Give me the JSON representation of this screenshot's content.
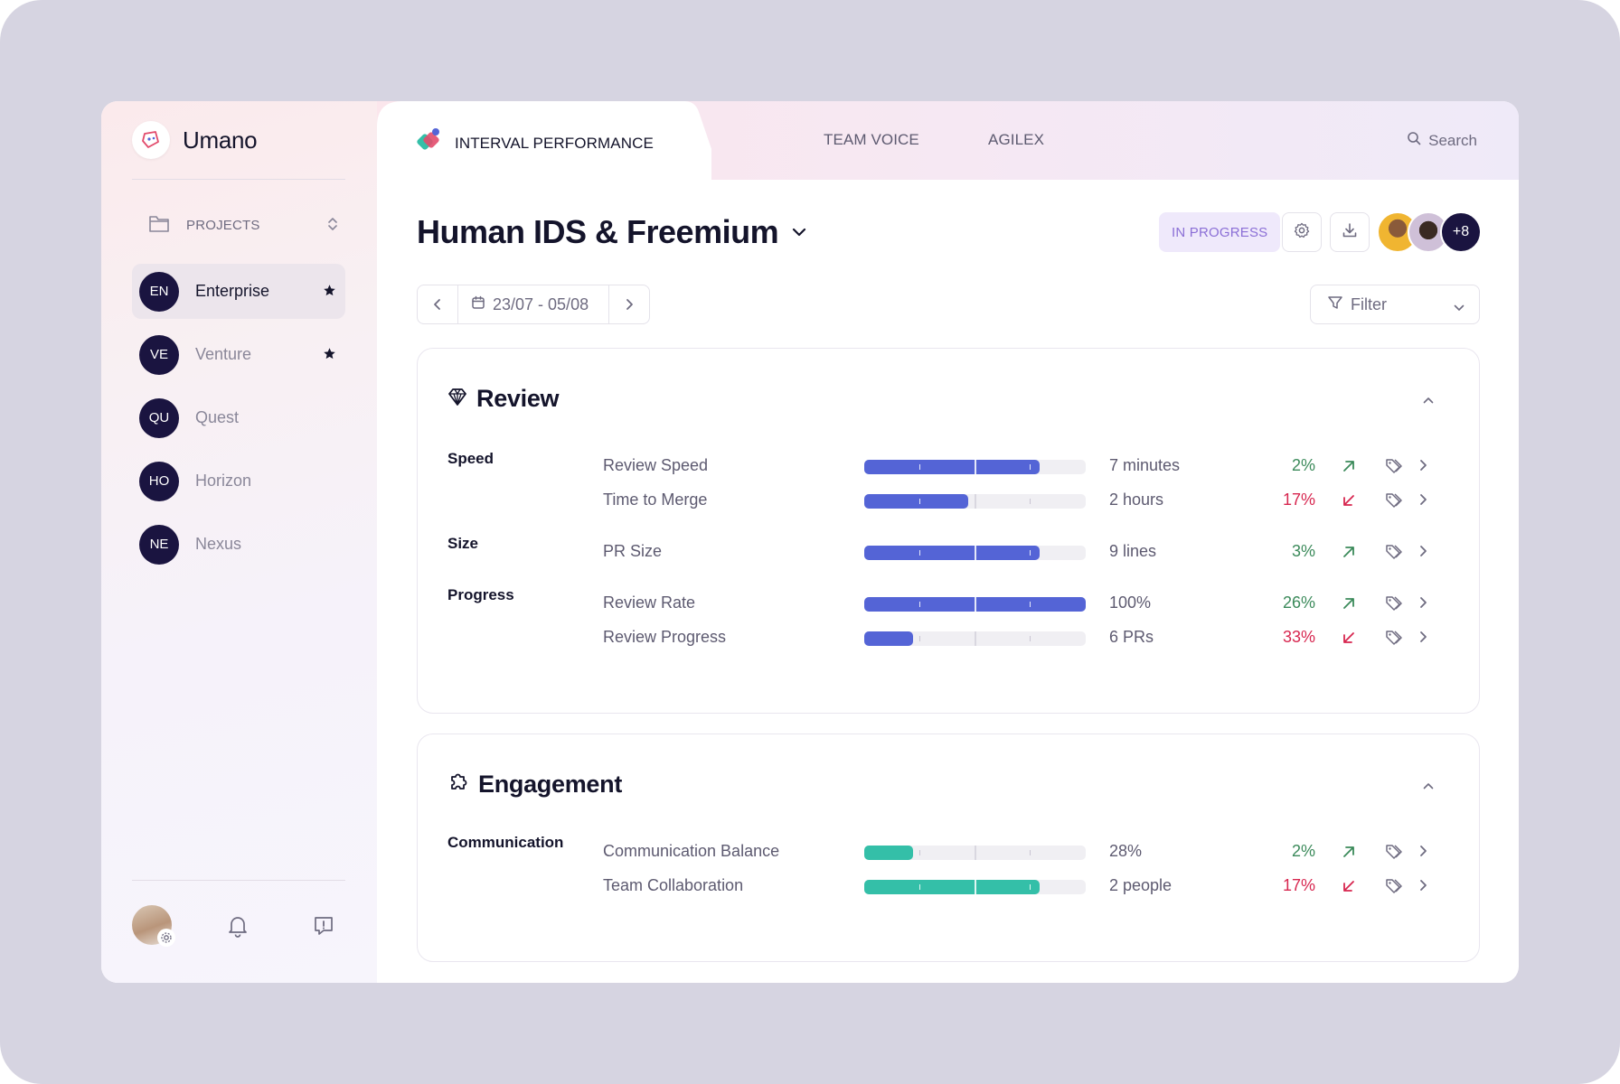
{
  "brand": {
    "name": "Umano"
  },
  "sidebar": {
    "projects_label": "PROJECTS",
    "items": [
      {
        "initials": "EN",
        "label": "Enterprise",
        "starred": true,
        "active": true
      },
      {
        "initials": "VE",
        "label": "Venture",
        "starred": true,
        "active": false
      },
      {
        "initials": "QU",
        "label": "Quest",
        "starred": false,
        "active": false
      },
      {
        "initials": "HO",
        "label": "Horizon",
        "starred": false,
        "active": false
      },
      {
        "initials": "NE",
        "label": "Nexus",
        "starred": false,
        "active": false
      }
    ],
    "bottom_icons": [
      "user-avatar",
      "bell-icon",
      "feedback-icon"
    ]
  },
  "tabs": [
    {
      "label": "INTERVAL PERFORMANCE",
      "active": true
    },
    {
      "label": "TEAM VOICE",
      "active": false
    },
    {
      "label": "AGILEX",
      "active": false
    }
  ],
  "search": {
    "label": "Search"
  },
  "header": {
    "title": "Human IDS & Freemium",
    "status": "IN PROGRESS",
    "extra_members": "+8"
  },
  "date_range": {
    "label": "23/07 - 05/08"
  },
  "filter": {
    "label": "Filter"
  },
  "colors": {
    "accent_blue": "#5464d6",
    "accent_teal": "#34bfa8",
    "delta_up": "#3b8a5a",
    "delta_down": "#d7264f",
    "badge_bg": "#efe9fb",
    "badge_text": "#8b6fd6",
    "dark_badge": "#1a1440"
  },
  "sections": [
    {
      "title": "Review",
      "icon": "diamond-icon",
      "groups": [
        {
          "label": "Speed",
          "metrics": [
            {
              "name": "Review Speed",
              "fill": 0.79,
              "value": "7 minutes",
              "delta": "2%",
              "trend": "up"
            },
            {
              "name": "Time to Merge",
              "fill": 0.47,
              "value": "2 hours",
              "delta": "17%",
              "trend": "down"
            }
          ]
        },
        {
          "label": "Size",
          "metrics": [
            {
              "name": "PR Size",
              "fill": 0.79,
              "value": "9 lines",
              "delta": "3%",
              "trend": "up"
            }
          ]
        },
        {
          "label": "Progress",
          "metrics": [
            {
              "name": "Review Rate",
              "fill": 1.0,
              "value": "100%",
              "delta": "26%",
              "trend": "up"
            },
            {
              "name": "Review Progress",
              "fill": 0.22,
              "value": "6 PRs",
              "delta": "33%",
              "trend": "down"
            }
          ]
        }
      ]
    },
    {
      "title": "Engagement",
      "icon": "puzzle-icon",
      "groups": [
        {
          "label": "Communication",
          "metrics": [
            {
              "name": "Communication Balance",
              "fill": 0.22,
              "value": "28%",
              "delta": "2%",
              "trend": "up"
            },
            {
              "name": "Team Collaboration",
              "fill": 0.79,
              "value": "2 people",
              "delta": "17%",
              "trend": "down"
            }
          ]
        }
      ]
    }
  ]
}
